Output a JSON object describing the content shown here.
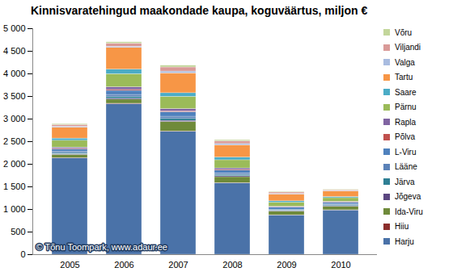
{
  "chart_data": {
    "type": "bar",
    "stacked": true,
    "title": "Kinnisvaratehingud maakondade kaupa, koguväärtus, miljon €",
    "annotation": "© Tõnu Toompark, www.adaur.ee",
    "categories": [
      "2005",
      "2006",
      "2007",
      "2008",
      "2009",
      "2010"
    ],
    "series": [
      {
        "name": "Harju",
        "color": "#4a72a8",
        "values": [
          2130,
          3330,
          2720,
          1580,
          870,
          980
        ]
      },
      {
        "name": "Hiiu",
        "color": "#8b2e2c",
        "values": [
          8,
          10,
          8,
          5,
          3,
          3
        ]
      },
      {
        "name": "Ida-Viru",
        "color": "#6f8a3a",
        "values": [
          70,
          90,
          210,
          130,
          80,
          80
        ]
      },
      {
        "name": "Jõgeva",
        "color": "#5b4680",
        "values": [
          15,
          20,
          25,
          20,
          10,
          12
        ]
      },
      {
        "name": "Järva",
        "color": "#2e7f94",
        "values": [
          25,
          35,
          40,
          30,
          15,
          18
        ]
      },
      {
        "name": "Lääne",
        "color": "#5b82b8",
        "values": [
          30,
          50,
          50,
          35,
          20,
          20
        ]
      },
      {
        "name": "L-Viru",
        "color": "#4f81bd",
        "values": [
          50,
          90,
          100,
          60,
          40,
          35
        ]
      },
      {
        "name": "Põlva",
        "color": "#c0504d",
        "values": [
          12,
          20,
          20,
          15,
          8,
          8
        ]
      },
      {
        "name": "Rapla",
        "color": "#8064a2",
        "values": [
          30,
          60,
          50,
          35,
          15,
          15
        ]
      },
      {
        "name": "Pärnu",
        "color": "#9bbb59",
        "values": [
          150,
          290,
          270,
          180,
          90,
          80
        ]
      },
      {
        "name": "Saare",
        "color": "#4bacc6",
        "values": [
          50,
          100,
          80,
          60,
          30,
          25
        ]
      },
      {
        "name": "Tartu",
        "color": "#f79646",
        "values": [
          240,
          480,
          440,
          270,
          150,
          120
        ]
      },
      {
        "name": "Valga",
        "color": "#a9bce0",
        "values": [
          20,
          25,
          40,
          30,
          15,
          10
        ]
      },
      {
        "name": "Viljandi",
        "color": "#d99a98",
        "values": [
          40,
          70,
          90,
          60,
          30,
          20
        ]
      },
      {
        "name": "Võru",
        "color": "#c3d69b",
        "values": [
          20,
          30,
          40,
          25,
          15,
          10
        ]
      }
    ],
    "ylim": [
      0,
      5000
    ],
    "yticks": [
      0,
      500,
      {
        "value": 1000,
        "label": "1 000"
      },
      {
        "value": 1500,
        "label": "1 500"
      },
      {
        "value": 2000,
        "label": "2 000"
      },
      {
        "value": 2500,
        "label": "2 500"
      },
      {
        "value": 3000,
        "label": "3 000"
      },
      {
        "value": 3500,
        "label": "3 500"
      },
      {
        "value": 4000,
        "label": "4 000"
      },
      {
        "value": 4500,
        "label": "4 500"
      },
      {
        "value": 5000,
        "label": "5 000"
      }
    ],
    "grid": false,
    "legend": "right"
  }
}
